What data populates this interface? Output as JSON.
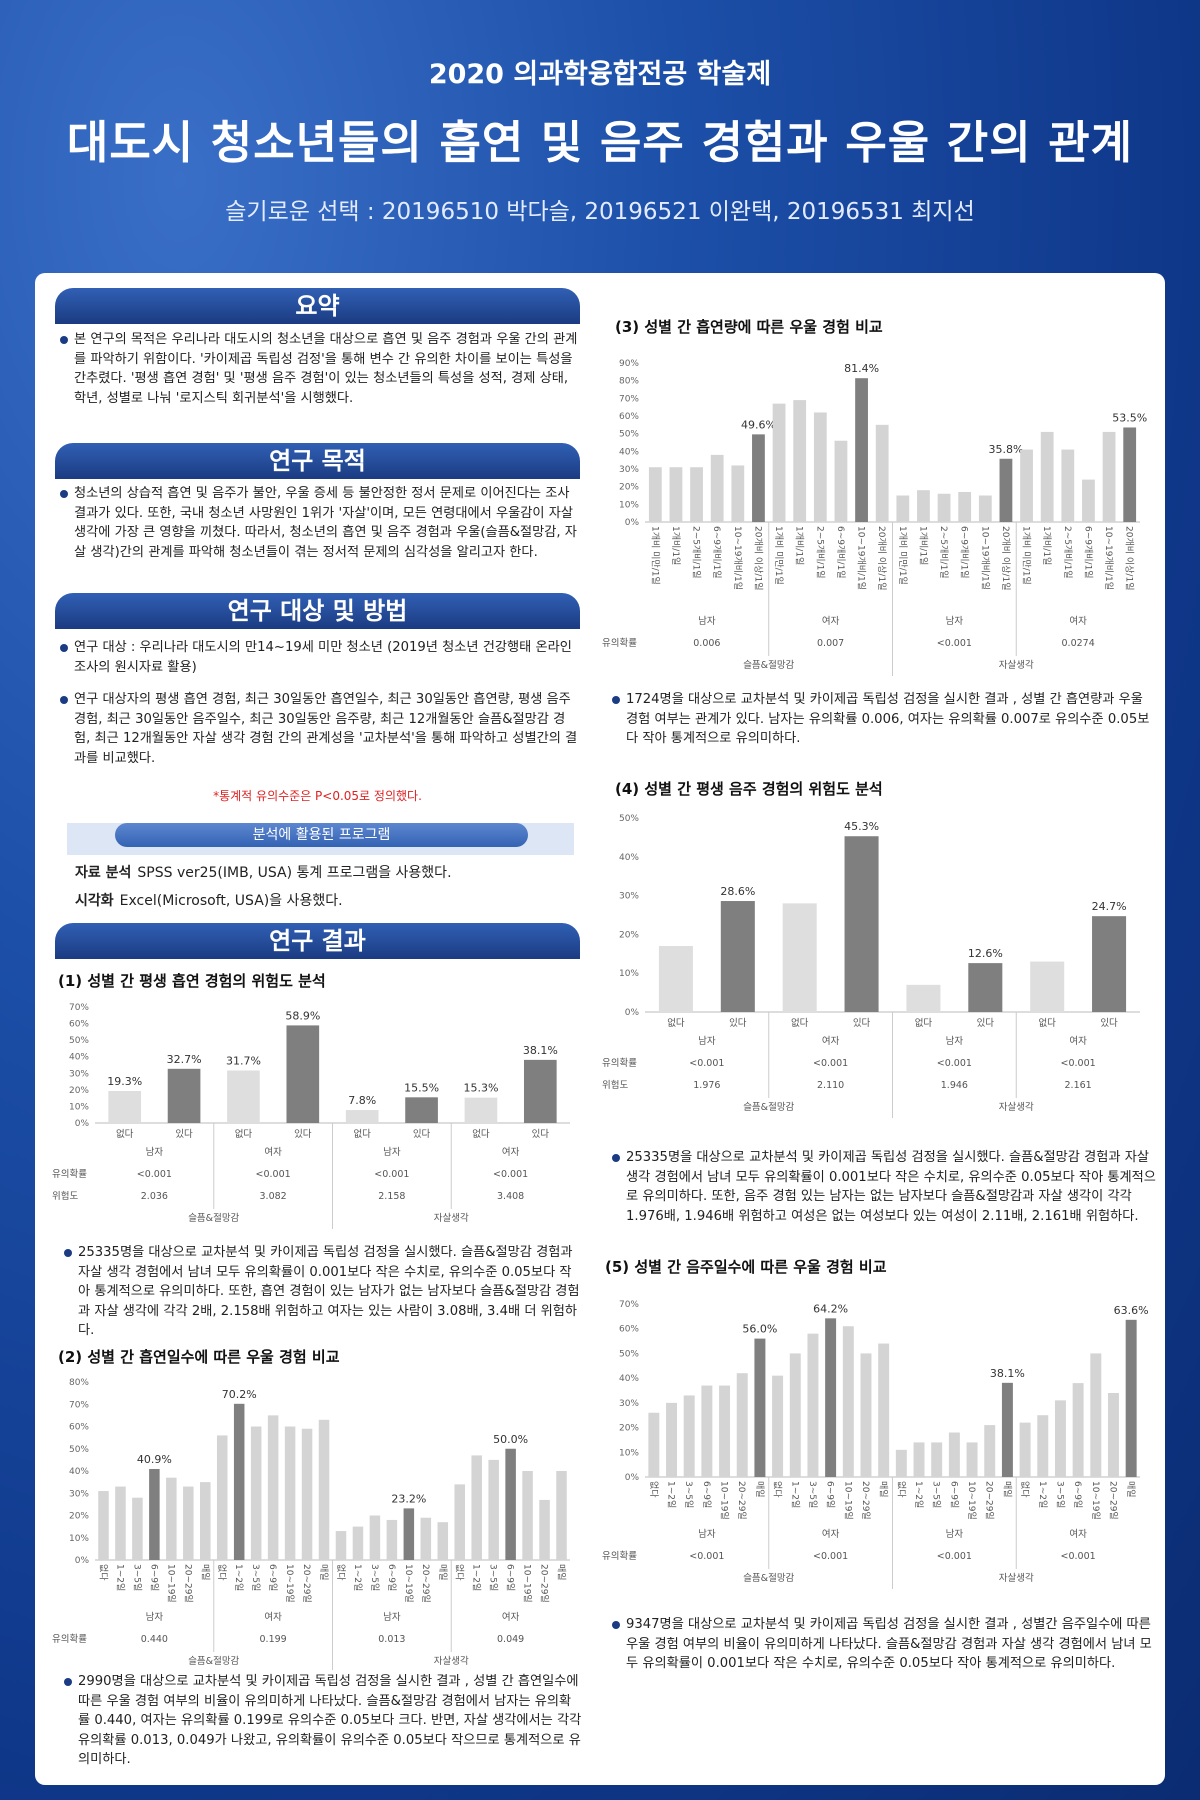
{
  "header": {
    "event": "2020 의과학융합전공 학술제",
    "title": "대도시 청소년들의 흡연 및 음주 경험과 우울 간의 관계",
    "authors": "슬기로운 선택 : 20196510 박다슬, 20196521 이완택, 20196531 최지선"
  },
  "sections": {
    "summary": {
      "heading": "요약",
      "paragraphs": [
        "본 연구의 목적은 우리나라 대도시의 청소년을 대상으로 흡연 및 음주 경험과 우울 간의 관계를 파악하기 위함이다. '카이제곱 독립성 검정'을 통해 변수 간 유의한 차이를 보이는 특성을 간추렸다. '평생 흡연 경험' 및 '평생 음주 경험'이 있는 청소년들의 특성을 성적, 경제 상태, 학년, 성별로 나눠 '로지스틱 회귀분석'을 시행했다."
      ]
    },
    "purpose": {
      "heading": "연구 목적",
      "paragraphs": [
        "청소년의 상습적 흡연 및 음주가 불안, 우울 증세 등 불안정한 정서 문제로 이어진다는 조사결과가 있다. 또한, 국내 청소년 사망원인 1위가 '자살'이며, 모든 연령대에서 우울감이 자살 생각에 가장 큰 영향을 끼쳤다. 따라서, 청소년의 흡연 및 음주 경험과 우울(슬픔&절망감, 자살 생각)간의 관계를 파악해 청소년들이 겪는 정서적 문제의 심각성을 알리고자 한다."
      ]
    },
    "method": {
      "heading": "연구 대상 및 방법",
      "paragraphs": [
        "연구 대상 : 우리나라 대도시의 만14~19세 미만 청소년 (2019년 청소년 건강행태 온라인 조사의 원시자료 활용)",
        "연구 대상자의 평생 흡연 경험, 최근 30일동안 흡연일수, 최근 30일동안 흡연량, 평생 음주 경험, 최근 30일동안 음주일수, 최근 30일동안 음주량, 최근 12개월동안 슬픔&절망감 경험, 최근 12개월동안 자살 생각 경험 간의 관계성을 '교차분석'을 통해 파악하고 성별간의 결과를 비교했다."
      ],
      "note": "*통계적 유의수준은 P<0.05로 정의했다.",
      "programs": {
        "heading": "분석에 활용된 프로그램",
        "items": [
          {
            "label": "자료 분석",
            "text": "SPSS ver25(IMB, USA) 통계 프로그램을 사용했다."
          },
          {
            "label": "시각화",
            "text": "Excel(Microsoft, USA)을 사용했다."
          }
        ]
      }
    },
    "results": {
      "heading": "연구 결과"
    }
  },
  "charts": [
    {
      "type": "bar",
      "title": "(1) 성별 간 평생 흡연 경험의 위험도 분석",
      "categories": [
        "없다",
        "있다"
      ],
      "ylim": [
        0,
        70
      ],
      "yticks": [
        {
          "value": 0,
          "label": "0%"
        },
        {
          "value": 10,
          "label": "10%"
        },
        {
          "value": 20,
          "label": "20%"
        },
        {
          "value": 30,
          "label": "30%"
        },
        {
          "value": 40,
          "label": "40%"
        },
        {
          "value": 50,
          "label": "50%"
        },
        {
          "value": 60,
          "label": "60%"
        },
        {
          "value": 70,
          "label": "70%"
        }
      ],
      "row_labels": [
        "유의확률",
        "위험도"
      ],
      "panels": [
        {
          "name": "슬픔&절망감",
          "groups": [
            {
              "name": "남자",
              "p_value": "<0.001",
              "risk": "2.036",
              "values": [
                19.3,
                32.7
              ],
              "value_labels": [
                "19.3%",
                "32.7%"
              ],
              "colors": [
                "#dedede",
                "#7f7f7f"
              ]
            },
            {
              "name": "여자",
              "p_value": "<0.001",
              "risk": "3.082",
              "values": [
                31.7,
                58.9
              ],
              "value_labels": [
                "31.7%",
                "58.9%"
              ],
              "colors": [
                "#dedede",
                "#7f7f7f"
              ]
            }
          ]
        },
        {
          "name": "자살생각",
          "groups": [
            {
              "name": "남자",
              "p_value": "<0.001",
              "risk": "2.158",
              "values": [
                7.8,
                15.5
              ],
              "value_labels": [
                "7.8%",
                "15.5%"
              ],
              "colors": [
                "#dedede",
                "#7f7f7f"
              ]
            },
            {
              "name": "여자",
              "p_value": "<0.001",
              "risk": "3.408",
              "values": [
                15.3,
                38.1
              ],
              "value_labels": [
                "15.3%",
                "38.1%"
              ],
              "colors": [
                "#dedede",
                "#7f7f7f"
              ]
            }
          ]
        }
      ],
      "description": "25335명을 대상으로 교차분석 및 카이제곱 독립성 검정을 실시했다. 슬픔&절망감 경험과 자살 생각 경험에서 남녀 모두 유의확률이 0.001보다 작은 수치로, 유의수준 0.05보다 작아 통계적으로 유의미하다. 또한, 흡연 경험이 있는 남자가 없는 남자보다 슬픔&절망감 경험과 자살 생각에 각각 2배, 2.158배 위험하고 여자는 있는 사람이 3.08배, 3.4배 더 위험하다."
    },
    {
      "type": "bar",
      "title": "(2) 성별 간 흡연일수에 따른 우울 경험 비교",
      "categories": [
        "없다",
        "1~2일",
        "3~5일",
        "6~9일",
        "10~19일",
        "20~29일",
        "매일"
      ],
      "ylim": [
        0,
        80
      ],
      "yticks": [
        {
          "value": 0,
          "label": "0%"
        },
        {
          "value": 10,
          "label": "10%"
        },
        {
          "value": 20,
          "label": "20%"
        },
        {
          "value": 30,
          "label": "30%"
        },
        {
          "value": 40,
          "label": "40%"
        },
        {
          "value": 50,
          "label": "50%"
        },
        {
          "value": 60,
          "label": "60%"
        },
        {
          "value": 70,
          "label": "70%"
        },
        {
          "value": 80,
          "label": "80%"
        }
      ],
      "row_labels": [
        "유의확률"
      ],
      "panels": [
        {
          "name": "슬픔&절망감",
          "groups": [
            {
              "name": "남자",
              "p_value": "0.440",
              "values": [
                31,
                33,
                28,
                40.9,
                37,
                33,
                35
              ],
              "value_labels": [
                null,
                null,
                null,
                "40.9%",
                null,
                null,
                null
              ],
              "colors": [
                "#d4d4d4",
                "#d4d4d4",
                "#d4d4d4",
                "#7f7f7f",
                "#d4d4d4",
                "#d4d4d4",
                "#d4d4d4"
              ]
            },
            {
              "name": "여자",
              "p_value": "0.199",
              "values": [
                56,
                70.2,
                60,
                65,
                60,
                59,
                63
              ],
              "value_labels": [
                null,
                "70.2%",
                null,
                null,
                null,
                null,
                null
              ],
              "colors": [
                "#d4d4d4",
                "#7f7f7f",
                "#d4d4d4",
                "#d4d4d4",
                "#d4d4d4",
                "#d4d4d4",
                "#d4d4d4"
              ]
            }
          ]
        },
        {
          "name": "자살생각",
          "groups": [
            {
              "name": "남자",
              "p_value": "0.013",
              "values": [
                13,
                15,
                20,
                18,
                23.2,
                19,
                17
              ],
              "value_labels": [
                null,
                null,
                null,
                null,
                "23.2%",
                null,
                null
              ],
              "colors": [
                "#d4d4d4",
                "#d4d4d4",
                "#d4d4d4",
                "#d4d4d4",
                "#7f7f7f",
                "#d4d4d4",
                "#d4d4d4"
              ]
            },
            {
              "name": "여자",
              "p_value": "0.049",
              "values": [
                34,
                47,
                45,
                50,
                40,
                27,
                40
              ],
              "value_labels": [
                null,
                null,
                null,
                "50.0%",
                null,
                null,
                null
              ],
              "colors": [
                "#d4d4d4",
                "#d4d4d4",
                "#d4d4d4",
                "#7f7f7f",
                "#d4d4d4",
                "#d4d4d4",
                "#d4d4d4"
              ]
            }
          ]
        }
      ],
      "description": "2990명을 대상으로 교차분석 및 카이제곱 독립성 검정을 실시한 결과 , 성별 간 흡연일수에 따른 우울 경험 여부의 비율이 유의미하게 나타났다. 슬픔&절망감 경험에서 남자는 유의확률 0.440, 여자는 유의확률 0.199로 유의수준 0.05보다 크다. 반면, 자살 생각에서는 각각 유의확률 0.013, 0.049가 나왔고, 유의확률이 유의수준 0.05보다 작으므로 통계적으로 유의미하다."
    },
    {
      "type": "bar",
      "title": "(3) 성별 간 흡연량에 따른 우울 경험 비교",
      "categories": [
        "1개비 미만/1일",
        "1개비/1일",
        "2~5개비/1일",
        "6~9개비/1일",
        "10~19개비/1일",
        "20개비 이상/1일"
      ],
      "ylim": [
        0,
        90
      ],
      "yticks": [
        {
          "value": 0,
          "label": "0%"
        },
        {
          "value": 10,
          "label": "10%"
        },
        {
          "value": 20,
          "label": "20%"
        },
        {
          "value": 30,
          "label": "30%"
        },
        {
          "value": 40,
          "label": "40%"
        },
        {
          "value": 50,
          "label": "50%"
        },
        {
          "value": 60,
          "label": "60%"
        },
        {
          "value": 70,
          "label": "70%"
        },
        {
          "value": 80,
          "label": "80%"
        },
        {
          "value": 90,
          "label": "90%"
        }
      ],
      "row_labels": [
        "유의확률"
      ],
      "panels": [
        {
          "name": "슬픔&절망감",
          "groups": [
            {
              "name": "남자",
              "p_value": "0.006",
              "values": [
                31,
                31,
                31,
                38,
                32,
                49.6
              ],
              "value_labels": [
                null,
                null,
                null,
                null,
                null,
                "49.6%"
              ],
              "colors": [
                "#d4d4d4",
                "#d4d4d4",
                "#d4d4d4",
                "#d4d4d4",
                "#d4d4d4",
                "#7f7f7f"
              ]
            },
            {
              "name": "여자",
              "p_value": "0.007",
              "values": [
                67,
                69,
                62,
                46,
                81.4,
                55
              ],
              "value_labels": [
                null,
                null,
                null,
                null,
                "81.4%",
                null
              ],
              "colors": [
                "#d4d4d4",
                "#d4d4d4",
                "#d4d4d4",
                "#d4d4d4",
                "#7f7f7f",
                "#d4d4d4"
              ]
            }
          ]
        },
        {
          "name": "자살생각",
          "groups": [
            {
              "name": "남자",
              "p_value": "<0.001",
              "values": [
                15,
                18,
                16,
                17,
                15,
                35.8
              ],
              "value_labels": [
                null,
                null,
                null,
                null,
                null,
                "35.8%"
              ],
              "colors": [
                "#d4d4d4",
                "#d4d4d4",
                "#d4d4d4",
                "#d4d4d4",
                "#d4d4d4",
                "#7f7f7f"
              ]
            },
            {
              "name": "여자",
              "p_value": "0.0274",
              "values": [
                41,
                51,
                41,
                24,
                51,
                53.5
              ],
              "value_labels": [
                null,
                null,
                null,
                null,
                null,
                "53.5%"
              ],
              "colors": [
                "#d4d4d4",
                "#d4d4d4",
                "#d4d4d4",
                "#d4d4d4",
                "#d4d4d4",
                "#7f7f7f"
              ]
            }
          ]
        }
      ],
      "description": "1724명을 대상으로 교차분석 및 카이제곱 독립성 검정을 실시한 결과 , 성별 간 흡연량과 우울 경험 여부는 관계가 있다. 남자는 유의확률 0.006, 여자는 유의확률 0.007로 유의수준 0.05보다 작아 통계적으로 유의미하다."
    },
    {
      "type": "bar",
      "title": "(4) 성별 간 평생 음주 경험의 위험도 분석",
      "categories": [
        "없다",
        "있다"
      ],
      "ylim": [
        0,
        50
      ],
      "yticks": [
        {
          "value": 0,
          "label": "0%"
        },
        {
          "value": 10,
          "label": "10%"
        },
        {
          "value": 20,
          "label": "20%"
        },
        {
          "value": 30,
          "label": "30%"
        },
        {
          "value": 40,
          "label": "40%"
        },
        {
          "value": 50,
          "label": "50%"
        }
      ],
      "row_labels": [
        "유의확률",
        "위험도"
      ],
      "panels": [
        {
          "name": "슬픔&절망감",
          "groups": [
            {
              "name": "남자",
              "p_value": "<0.001",
              "risk": "1.976",
              "values": [
                17,
                28.6
              ],
              "value_labels": [
                null,
                "28.6%"
              ],
              "colors": [
                "#dedede",
                "#7f7f7f"
              ]
            },
            {
              "name": "여자",
              "p_value": "<0.001",
              "risk": "2.110",
              "values": [
                28,
                45.3
              ],
              "value_labels": [
                null,
                "45.3%"
              ],
              "colors": [
                "#dedede",
                "#7f7f7f"
              ]
            }
          ]
        },
        {
          "name": "자살생각",
          "groups": [
            {
              "name": "남자",
              "p_value": "<0.001",
              "risk": "1.946",
              "values": [
                7,
                12.6
              ],
              "value_labels": [
                null,
                "12.6%"
              ],
              "colors": [
                "#dedede",
                "#7f7f7f"
              ]
            },
            {
              "name": "여자",
              "p_value": "<0.001",
              "risk": "2.161",
              "values": [
                13,
                24.7
              ],
              "value_labels": [
                null,
                "24.7%"
              ],
              "colors": [
                "#dedede",
                "#7f7f7f"
              ]
            }
          ]
        }
      ],
      "description": "25335명을 대상으로 교차분석 및 카이제곱 독립성 검정을 실시했다. 슬픔&절망감 경험과 자살 생각 경험에서 남녀 모두 유의확률이 0.001보다 작은 수치로, 유의수준 0.05보다 작아 통계적으로 유의미하다. 또한, 음주 경험 있는 남자는 없는 남자보다 슬픔&절망감과 자살 생각이 각각 1.976배, 1.946배 위험하고 여성은 없는 여성보다 있는 여성이 2.11배, 2.161배 위험하다."
    },
    {
      "type": "bar",
      "title": "(5) 성별 간 음주일수에 따른 우울 경험 비교",
      "categories": [
        "없다",
        "1~2일",
        "3~5일",
        "6~9일",
        "10~19일",
        "20~29일",
        "매일"
      ],
      "ylim": [
        0,
        70
      ],
      "yticks": [
        {
          "value": 0,
          "label": "0%"
        },
        {
          "value": 10,
          "label": "10%"
        },
        {
          "value": 20,
          "label": "20%"
        },
        {
          "value": 30,
          "label": "30%"
        },
        {
          "value": 40,
          "label": "40%"
        },
        {
          "value": 50,
          "label": "50%"
        },
        {
          "value": 60,
          "label": "60%"
        },
        {
          "value": 70,
          "label": "70%"
        }
      ],
      "row_labels": [
        "유의확률"
      ],
      "panels": [
        {
          "name": "슬픔&절망감",
          "groups": [
            {
              "name": "남자",
              "p_value": "<0.001",
              "values": [
                26,
                30,
                33,
                37,
                37,
                42,
                56
              ],
              "value_labels": [
                null,
                null,
                null,
                null,
                null,
                null,
                "56.0%"
              ],
              "colors": [
                "#d4d4d4",
                "#d4d4d4",
                "#d4d4d4",
                "#d4d4d4",
                "#d4d4d4",
                "#d4d4d4",
                "#7f7f7f"
              ]
            },
            {
              "name": "여자",
              "p_value": "<0.001",
              "values": [
                41,
                50,
                58,
                64.2,
                61,
                50,
                54
              ],
              "value_labels": [
                null,
                null,
                null,
                "64.2%",
                null,
                null,
                null
              ],
              "colors": [
                "#d4d4d4",
                "#d4d4d4",
                "#d4d4d4",
                "#7f7f7f",
                "#d4d4d4",
                "#d4d4d4",
                "#d4d4d4"
              ]
            }
          ]
        },
        {
          "name": "자살생각",
          "groups": [
            {
              "name": "남자",
              "p_value": "<0.001",
              "values": [
                11,
                14,
                14,
                18,
                14,
                21,
                38.1
              ],
              "value_labels": [
                null,
                null,
                null,
                null,
                null,
                null,
                "38.1%"
              ],
              "colors": [
                "#d4d4d4",
                "#d4d4d4",
                "#d4d4d4",
                "#d4d4d4",
                "#d4d4d4",
                "#d4d4d4",
                "#7f7f7f"
              ]
            },
            {
              "name": "여자",
              "p_value": "<0.001",
              "values": [
                22,
                25,
                31,
                38,
                50,
                34,
                63.6
              ],
              "value_labels": [
                null,
                null,
                null,
                null,
                null,
                null,
                "63.6%"
              ],
              "colors": [
                "#d4d4d4",
                "#d4d4d4",
                "#d4d4d4",
                "#d4d4d4",
                "#d4d4d4",
                "#d4d4d4",
                "#7f7f7f"
              ]
            }
          ]
        }
      ],
      "description": "9347명을 대상으로 교차분석 및 카이제곱 독립성 검정을 실시한 결과 , 성별간 음주일수에 따른 우울 경험 여부의 비율이 유의미하게 나타났다. 슬픔&절망감 경험과 자살 생각 경험에서 남녀 모두 유의확률이 0.001보다 작은 수치로, 유의수준 0.05보다 작아 통계적으로 유의미하다."
    }
  ]
}
